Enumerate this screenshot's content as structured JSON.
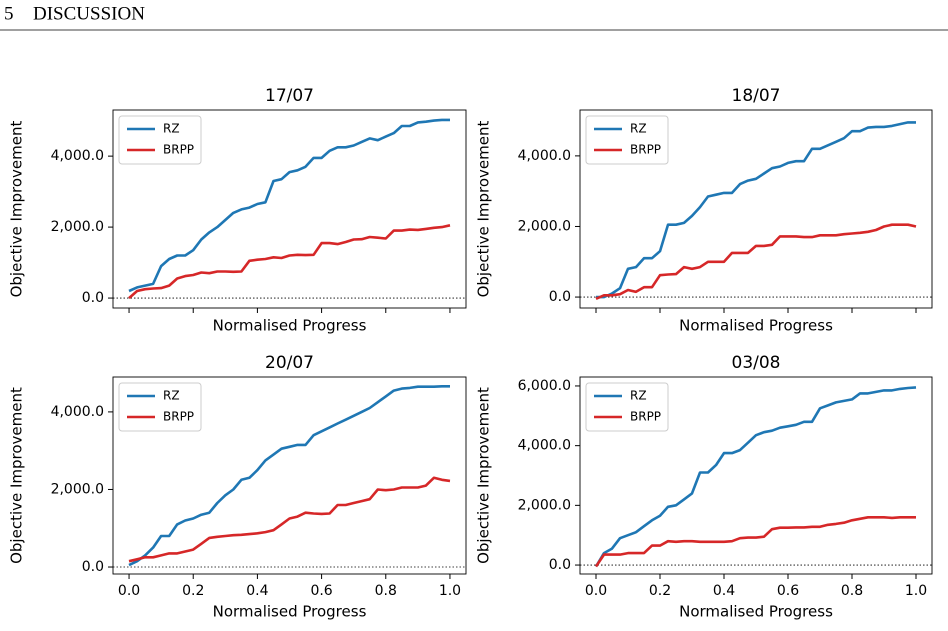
{
  "header": {
    "number": "5",
    "title": "DISCUSSION"
  },
  "chart_data": [
    {
      "type": "line",
      "title": "17/07",
      "xlabel": "Normalised Progress",
      "ylabel": "Objective Improvement",
      "legend": "upper left",
      "hline": 0,
      "x": [
        0,
        0.025,
        0.05,
        0.075,
        0.1,
        0.125,
        0.15,
        0.175,
        0.2,
        0.225,
        0.25,
        0.275,
        0.3,
        0.325,
        0.35,
        0.375,
        0.4,
        0.425,
        0.45,
        0.475,
        0.5,
        0.525,
        0.55,
        0.575,
        0.6,
        0.625,
        0.65,
        0.675,
        0.7,
        0.725,
        0.75,
        0.775,
        0.8,
        0.825,
        0.85,
        0.875,
        0.9,
        0.925,
        0.95,
        0.975,
        1
      ],
      "series": [
        {
          "name": "RZ",
          "color": "#1f77b4",
          "values": [
            200,
            300,
            350,
            400,
            900,
            1100,
            1200,
            1200,
            1350,
            1650,
            1850,
            2000,
            2200,
            2400,
            2500,
            2550,
            2650,
            2700,
            3300,
            3350,
            3550,
            3600,
            3700,
            3950,
            3950,
            4150,
            4250,
            4250,
            4300,
            4400,
            4500,
            4450,
            4550,
            4650,
            4850,
            4850,
            4950,
            4970,
            5000,
            5020,
            5020
          ]
        },
        {
          "name": "BRPP",
          "color": "#d62728",
          "values": [
            0,
            200,
            250,
            270,
            280,
            350,
            550,
            620,
            650,
            720,
            700,
            750,
            750,
            740,
            750,
            1050,
            1080,
            1100,
            1150,
            1130,
            1200,
            1220,
            1210,
            1220,
            1550,
            1550,
            1520,
            1580,
            1650,
            1660,
            1720,
            1700,
            1680,
            1900,
            1900,
            1930,
            1920,
            1950,
            1980,
            2000,
            2050
          ]
        }
      ],
      "xlim": [
        -0.05,
        1.05
      ],
      "xticks": [
        0,
        0.2,
        0.4,
        0.6,
        0.8,
        1
      ],
      "ylim": [
        -280,
        5300
      ],
      "yticks": [
        {
          "value": 0,
          "label": "0.0"
        },
        {
          "value": 2000,
          "label": "2,000.0"
        },
        {
          "value": 4000,
          "label": "4,000.0"
        }
      ]
    },
    {
      "type": "line",
      "title": "18/07",
      "xlabel": "Normalised Progress",
      "ylabel": "Objective Improvement",
      "legend": "upper left",
      "hline": 0,
      "x": [
        0,
        0.025,
        0.05,
        0.075,
        0.1,
        0.125,
        0.15,
        0.175,
        0.2,
        0.225,
        0.25,
        0.275,
        0.3,
        0.325,
        0.35,
        0.375,
        0.4,
        0.425,
        0.45,
        0.475,
        0.5,
        0.525,
        0.55,
        0.575,
        0.6,
        0.625,
        0.65,
        0.675,
        0.7,
        0.725,
        0.75,
        0.775,
        0.8,
        0.825,
        0.85,
        0.875,
        0.9,
        0.925,
        0.95,
        0.975,
        1
      ],
      "series": [
        {
          "name": "RZ",
          "color": "#1f77b4",
          "values": [
            0,
            0,
            100,
            250,
            800,
            850,
            1100,
            1100,
            1300,
            2050,
            2050,
            2100,
            2300,
            2550,
            2850,
            2900,
            2950,
            2950,
            3200,
            3300,
            3350,
            3500,
            3650,
            3700,
            3800,
            3850,
            3850,
            4200,
            4200,
            4300,
            4400,
            4500,
            4700,
            4700,
            4800,
            4820,
            4820,
            4850,
            4900,
            4950,
            4950
          ]
        },
        {
          "name": "BRPP",
          "color": "#d62728",
          "values": [
            -50,
            50,
            50,
            80,
            200,
            150,
            280,
            280,
            620,
            640,
            650,
            850,
            800,
            850,
            1000,
            1000,
            1000,
            1250,
            1250,
            1250,
            1450,
            1450,
            1480,
            1720,
            1720,
            1720,
            1700,
            1700,
            1750,
            1750,
            1750,
            1780,
            1800,
            1820,
            1850,
            1900,
            2000,
            2050,
            2050,
            2050,
            2000
          ]
        }
      ],
      "xlim": [
        -0.05,
        1.05
      ],
      "xticks": [
        0,
        0.2,
        0.4,
        0.6,
        0.8,
        1
      ],
      "ylim": [
        -310,
        5300
      ],
      "yticks": [
        {
          "value": 0,
          "label": "0.0"
        },
        {
          "value": 2000,
          "label": "2,000.0"
        },
        {
          "value": 4000,
          "label": "4,000.0"
        }
      ]
    },
    {
      "type": "line",
      "title": "20/07",
      "xlabel": "Normalised Progress",
      "ylabel": "Objective Improvement",
      "legend": "upper left",
      "hline": 0,
      "x": [
        0,
        0.025,
        0.05,
        0.075,
        0.1,
        0.125,
        0.15,
        0.175,
        0.2,
        0.225,
        0.25,
        0.275,
        0.3,
        0.325,
        0.35,
        0.375,
        0.4,
        0.425,
        0.45,
        0.475,
        0.5,
        0.525,
        0.55,
        0.575,
        0.6,
        0.625,
        0.65,
        0.675,
        0.7,
        0.725,
        0.75,
        0.775,
        0.8,
        0.825,
        0.85,
        0.875,
        0.9,
        0.925,
        0.95,
        0.975,
        1
      ],
      "series": [
        {
          "name": "RZ",
          "color": "#1f77b4",
          "values": [
            50,
            150,
            300,
            500,
            800,
            800,
            1100,
            1200,
            1250,
            1350,
            1400,
            1650,
            1850,
            2000,
            2250,
            2300,
            2500,
            2750,
            2900,
            3050,
            3100,
            3150,
            3150,
            3400,
            3500,
            3600,
            3700,
            3800,
            3900,
            4000,
            4100,
            4250,
            4400,
            4550,
            4600,
            4620,
            4650,
            4650,
            4650,
            4660,
            4660
          ]
        },
        {
          "name": "BRPP",
          "color": "#d62728",
          "values": [
            150,
            200,
            250,
            250,
            300,
            350,
            350,
            400,
            450,
            600,
            750,
            780,
            800,
            820,
            830,
            850,
            870,
            900,
            950,
            1100,
            1250,
            1300,
            1400,
            1380,
            1370,
            1380,
            1600,
            1600,
            1650,
            1700,
            1750,
            2000,
            1980,
            2000,
            2050,
            2050,
            2050,
            2100,
            2300,
            2250,
            2220
          ]
        }
      ],
      "xlim": [
        -0.05,
        1.05
      ],
      "xticks": [
        {
          "value": 0,
          "label": "0.0"
        },
        {
          "value": 0.2,
          "label": "0.2"
        },
        {
          "value": 0.4,
          "label": "0.4"
        },
        {
          "value": 0.6,
          "label": "0.6"
        },
        {
          "value": 0.8,
          "label": "0.8"
        },
        {
          "value": 1,
          "label": "1.0"
        }
      ],
      "ylim": [
        -180,
        4900
      ],
      "yticks": [
        {
          "value": 0,
          "label": "0.0"
        },
        {
          "value": 2000,
          "label": "2,000.0"
        },
        {
          "value": 4000,
          "label": "4,000.0"
        }
      ]
    },
    {
      "type": "line",
      "title": "03/08",
      "xlabel": "Normalised Progress",
      "ylabel": "Objective Improvement",
      "legend": "upper left",
      "hline": 0,
      "x": [
        0,
        0.025,
        0.05,
        0.075,
        0.1,
        0.125,
        0.15,
        0.175,
        0.2,
        0.225,
        0.25,
        0.275,
        0.3,
        0.325,
        0.35,
        0.375,
        0.4,
        0.425,
        0.45,
        0.475,
        0.5,
        0.525,
        0.55,
        0.575,
        0.6,
        0.625,
        0.65,
        0.675,
        0.7,
        0.725,
        0.75,
        0.775,
        0.8,
        0.825,
        0.85,
        0.875,
        0.9,
        0.925,
        0.95,
        0.975,
        1
      ],
      "series": [
        {
          "name": "RZ",
          "color": "#1f77b4",
          "values": [
            -50,
            400,
            550,
            900,
            1000,
            1100,
            1300,
            1500,
            1650,
            1950,
            2000,
            2200,
            2400,
            3100,
            3100,
            3350,
            3750,
            3750,
            3850,
            4100,
            4350,
            4450,
            4500,
            4600,
            4650,
            4700,
            4800,
            4800,
            5250,
            5350,
            5450,
            5500,
            5550,
            5750,
            5750,
            5800,
            5850,
            5850,
            5900,
            5930,
            5950
          ]
        },
        {
          "name": "BRPP",
          "color": "#d62728",
          "values": [
            -50,
            350,
            350,
            350,
            400,
            400,
            400,
            650,
            650,
            800,
            780,
            800,
            800,
            780,
            780,
            780,
            780,
            800,
            900,
            920,
            920,
            950,
            1200,
            1250,
            1250,
            1260,
            1260,
            1280,
            1280,
            1350,
            1380,
            1420,
            1500,
            1550,
            1600,
            1600,
            1600,
            1580,
            1600,
            1600,
            1600
          ]
        }
      ],
      "xlim": [
        -0.05,
        1.05
      ],
      "xticks": [
        {
          "value": 0,
          "label": "0.0"
        },
        {
          "value": 0.2,
          "label": "0.2"
        },
        {
          "value": 0.4,
          "label": "0.4"
        },
        {
          "value": 0.6,
          "label": "0.6"
        },
        {
          "value": 0.8,
          "label": "0.8"
        },
        {
          "value": 1,
          "label": "1.0"
        }
      ],
      "ylim": [
        -300,
        6300
      ],
      "yticks": [
        {
          "value": 0,
          "label": "0.0"
        },
        {
          "value": 2000,
          "label": "2,000.0"
        },
        {
          "value": 4000,
          "label": "4,000.0"
        },
        {
          "value": 6000,
          "label": "6,000.0"
        }
      ]
    }
  ]
}
